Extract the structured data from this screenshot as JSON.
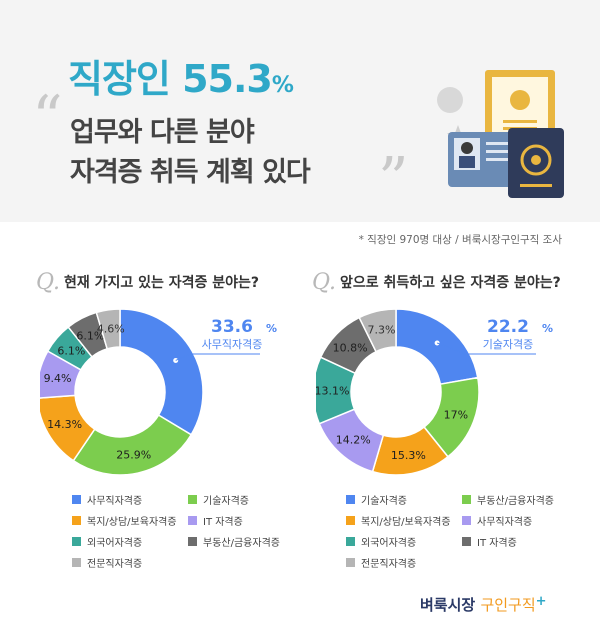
{
  "header": {
    "headline_main": "직장인 55.3",
    "headline_pct": "%",
    "quote_open": "“",
    "quote_close": "”",
    "subline1": "업무와 다른 분야",
    "subline2": "자격증 취득 계획 있다"
  },
  "survey_note": "* 직장인 970명 대상 / 벼룩시장구인구직 조사",
  "questions": [
    {
      "q_mark": "Q.",
      "title": "현재 가지고 있는 자격증 분야는?",
      "callout_value": "33.6",
      "callout_pct": "%",
      "callout_label": "사무직자격증",
      "legend": [
        {
          "label": "사무직자격증",
          "color": "#4f86f0"
        },
        {
          "label": "기술자격증",
          "color": "#7ccd4e"
        },
        {
          "label": "복지/상담/보육자격증",
          "color": "#f5a21b"
        },
        {
          "label": "IT 자격증",
          "color": "#a89af0"
        },
        {
          "label": "외국어자격증",
          "color": "#3aa89a"
        },
        {
          "label": "부동산/금융자격증",
          "color": "#6d6d6d"
        },
        {
          "label": "전문직자격증",
          "color": "#b5b5b5"
        }
      ]
    },
    {
      "q_mark": "Q.",
      "title": "앞으로 취득하고 싶은 자격증 분야는?",
      "callout_value": "22.2",
      "callout_pct": "%",
      "callout_label": "기술자격증",
      "legend": [
        {
          "label": "기술자격증",
          "color": "#4f86f0"
        },
        {
          "label": "부동산/금융자격증",
          "color": "#7ccd4e"
        },
        {
          "label": "복지/상담/보육자격증",
          "color": "#f5a21b"
        },
        {
          "label": "사무직자격증",
          "color": "#a89af0"
        },
        {
          "label": "외국어자격증",
          "color": "#3aa89a"
        },
        {
          "label": "IT 자격증",
          "color": "#6d6d6d"
        },
        {
          "label": "전문직자격증",
          "color": "#b5b5b5"
        }
      ]
    }
  ],
  "chart_data": [
    {
      "type": "pie",
      "title": "현재 가지고 있는 자격증 분야는?",
      "categories": [
        "사무직자격증",
        "기술자격증",
        "복지/상담/보육자격증",
        "IT 자격증",
        "외국어자격증",
        "부동산/금융자격증",
        "전문직자격증"
      ],
      "values": [
        33.6,
        25.9,
        14.3,
        9.4,
        6.1,
        6.1,
        4.6
      ],
      "value_labels": [
        "33.6%",
        "25.9%",
        "14.3%",
        "9.4%",
        "6.1%",
        "6.1%",
        "4.6%"
      ],
      "colors": [
        "#4f86f0",
        "#7ccd4e",
        "#f5a21b",
        "#a89af0",
        "#3aa89a",
        "#6d6d6d",
        "#b5b5b5"
      ],
      "legend_position": "bottom"
    },
    {
      "type": "pie",
      "title": "앞으로 취득하고 싶은 자격증 분야는?",
      "categories": [
        "기술자격증",
        "부동산/금융자격증",
        "복지/상담/보육자격증",
        "사무직자격증",
        "외국어자격증",
        "IT 자격증",
        "전문직자격증"
      ],
      "values": [
        22.2,
        17,
        15.3,
        14.2,
        13.1,
        10.8,
        7.3
      ],
      "value_labels": [
        "22.2%",
        "17%",
        "15.3%",
        "14.2%",
        "13.1%",
        "10.8%",
        "7.3%"
      ],
      "colors": [
        "#4f86f0",
        "#7ccd4e",
        "#f5a21b",
        "#a89af0",
        "#3aa89a",
        "#6d6d6d",
        "#b5b5b5"
      ],
      "legend_position": "bottom"
    }
  ],
  "logo": {
    "part1": "벼룩시장 ",
    "part2": "구인구직",
    "plus": "+"
  }
}
